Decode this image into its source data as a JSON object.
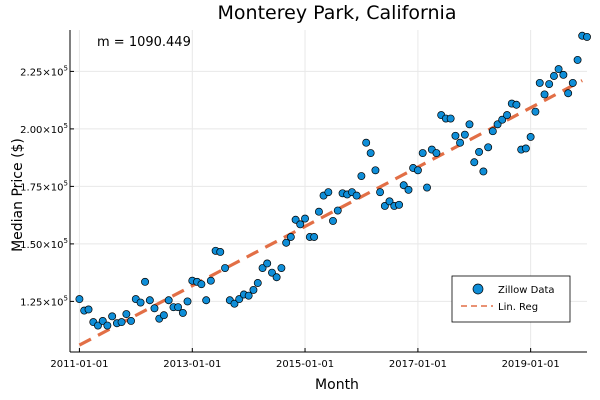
{
  "chart_data": {
    "type": "scatter",
    "title": "Monterey Park, California",
    "xlabel": "Month",
    "ylabel": "Median Price ($)",
    "annotation": "m = 1090.449",
    "x_ticks": [
      "2011-01-01",
      "2013-01-01",
      "2015-01-01",
      "2017-01-01",
      "2019-01-01"
    ],
    "y_ticks": [
      {
        "value": 125000,
        "mantissa": "1.25",
        "base": "×10",
        "exp": "5"
      },
      {
        "value": 150000,
        "mantissa": "1.50",
        "base": "×10",
        "exp": "5"
      },
      {
        "value": 175000,
        "mantissa": "1.75",
        "base": "×10",
        "exp": "5"
      },
      {
        "value": 200000,
        "mantissa": "2.00",
        "base": "×10",
        "exp": "5"
      },
      {
        "value": 225000,
        "mantissa": "2.25",
        "base": "×10",
        "exp": "5"
      }
    ],
    "x_range": [
      "2010-11-01",
      "2020-01-01"
    ],
    "y_range": [
      103000,
      243000
    ],
    "grid": true,
    "legend_position": "bottom-right",
    "series": [
      {
        "name": "Zillow Data",
        "kind": "scatter",
        "color": "#0f8ed8",
        "points": [
          [
            "2011-01-01",
            126000
          ],
          [
            "2011-02-01",
            121000
          ],
          [
            "2011-03-01",
            121500
          ],
          [
            "2011-04-01",
            116000
          ],
          [
            "2011-05-01",
            114500
          ],
          [
            "2011-06-01",
            116500
          ],
          [
            "2011-07-01",
            114500
          ],
          [
            "2011-08-01",
            118500
          ],
          [
            "2011-09-01",
            115500
          ],
          [
            "2011-10-01",
            116000
          ],
          [
            "2011-11-01",
            119500
          ],
          [
            "2011-12-01",
            116500
          ],
          [
            "2012-01-01",
            126000
          ],
          [
            "2012-02-01",
            124500
          ],
          [
            "2012-03-01",
            133500
          ],
          [
            "2012-04-01",
            125500
          ],
          [
            "2012-05-01",
            122000
          ],
          [
            "2012-06-01",
            117500
          ],
          [
            "2012-07-01",
            119000
          ],
          [
            "2012-08-01",
            125500
          ],
          [
            "2012-09-01",
            122500
          ],
          [
            "2012-10-01",
            122500
          ],
          [
            "2012-11-01",
            120000
          ],
          [
            "2012-12-01",
            125000
          ],
          [
            "2013-01-01",
            134000
          ],
          [
            "2013-02-01",
            133500
          ],
          [
            "2013-03-01",
            132500
          ],
          [
            "2013-04-01",
            125500
          ],
          [
            "2013-05-01",
            134000
          ],
          [
            "2013-06-01",
            147000
          ],
          [
            "2013-07-01",
            146500
          ],
          [
            "2013-08-01",
            139500
          ],
          [
            "2013-09-01",
            125500
          ],
          [
            "2013-10-01",
            124000
          ],
          [
            "2013-11-01",
            126000
          ],
          [
            "2013-12-01",
            128000
          ],
          [
            "2014-01-01",
            127500
          ],
          [
            "2014-02-01",
            130000
          ],
          [
            "2014-03-01",
            133000
          ],
          [
            "2014-04-01",
            139500
          ],
          [
            "2014-05-01",
            141500
          ],
          [
            "2014-06-01",
            137500
          ],
          [
            "2014-07-01",
            135500
          ],
          [
            "2014-08-01",
            139500
          ],
          [
            "2014-09-01",
            150500
          ],
          [
            "2014-10-01",
            153000
          ],
          [
            "2014-11-01",
            160500
          ],
          [
            "2014-12-01",
            158500
          ],
          [
            "2015-01-01",
            161000
          ],
          [
            "2015-02-01",
            153000
          ],
          [
            "2015-03-01",
            153000
          ],
          [
            "2015-04-01",
            164000
          ],
          [
            "2015-05-01",
            171000
          ],
          [
            "2015-06-01",
            172500
          ],
          [
            "2015-07-01",
            160000
          ],
          [
            "2015-08-01",
            164500
          ],
          [
            "2015-09-01",
            172000
          ],
          [
            "2015-10-01",
            171500
          ],
          [
            "2015-11-01",
            172500
          ],
          [
            "2015-12-01",
            171000
          ],
          [
            "2016-01-01",
            179500
          ],
          [
            "2016-02-01",
            194000
          ],
          [
            "2016-03-01",
            189500
          ],
          [
            "2016-04-01",
            182000
          ],
          [
            "2016-05-01",
            172500
          ],
          [
            "2016-06-01",
            166500
          ],
          [
            "2016-07-01",
            168500
          ],
          [
            "2016-08-01",
            166500
          ],
          [
            "2016-09-01",
            167000
          ],
          [
            "2016-10-01",
            175500
          ],
          [
            "2016-11-01",
            173500
          ],
          [
            "2016-12-01",
            183000
          ],
          [
            "2017-01-01",
            182000
          ],
          [
            "2017-02-01",
            189500
          ],
          [
            "2017-03-01",
            174500
          ],
          [
            "2017-04-01",
            191000
          ],
          [
            "2017-05-01",
            189500
          ],
          [
            "2017-06-01",
            206000
          ],
          [
            "2017-07-01",
            204500
          ],
          [
            "2017-08-01",
            204500
          ],
          [
            "2017-09-01",
            197000
          ],
          [
            "2017-10-01",
            194000
          ],
          [
            "2017-11-01",
            197500
          ],
          [
            "2017-12-01",
            202000
          ],
          [
            "2018-01-01",
            185500
          ],
          [
            "2018-02-01",
            190000
          ],
          [
            "2018-03-01",
            181500
          ],
          [
            "2018-04-01",
            192000
          ],
          [
            "2018-05-01",
            199000
          ],
          [
            "2018-06-01",
            202000
          ],
          [
            "2018-07-01",
            204000
          ],
          [
            "2018-08-01",
            206000
          ],
          [
            "2018-09-01",
            211000
          ],
          [
            "2018-10-01",
            210500
          ],
          [
            "2018-11-01",
            191000
          ],
          [
            "2018-12-01",
            191500
          ],
          [
            "2019-01-01",
            196500
          ],
          [
            "2019-02-01",
            207500
          ],
          [
            "2019-03-01",
            220000
          ],
          [
            "2019-04-01",
            215000
          ],
          [
            "2019-05-01",
            219500
          ],
          [
            "2019-06-01",
            223000
          ],
          [
            "2019-07-01",
            226000
          ],
          [
            "2019-08-01",
            223500
          ],
          [
            "2019-09-01",
            215500
          ],
          [
            "2019-10-01",
            220000
          ],
          [
            "2019-11-01",
            230000
          ],
          [
            "2019-12-01",
            240500
          ],
          [
            "2020-01-01",
            240000
          ]
        ]
      },
      {
        "name": "Lin. Reg",
        "kind": "line",
        "dashed": true,
        "color": "#e26f46",
        "points": [
          [
            "2011-01-01",
            106000
          ],
          [
            "2019-12-01",
            221000
          ]
        ]
      }
    ]
  }
}
